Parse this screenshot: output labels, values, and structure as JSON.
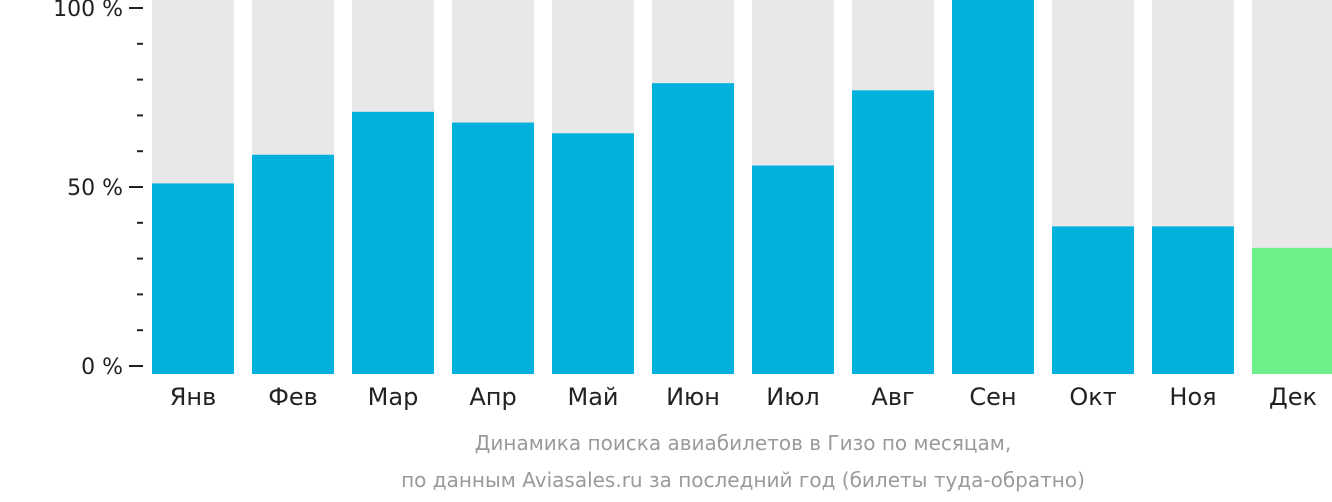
{
  "chart_data": {
    "type": "bar",
    "categories": [
      "Янв",
      "Фев",
      "Мар",
      "Апр",
      "Май",
      "Июн",
      "Июл",
      "Авг",
      "Сен",
      "Окт",
      "Ноя",
      "Дек"
    ],
    "values": [
      51,
      59,
      71,
      68,
      65,
      79,
      56,
      77,
      100,
      39,
      39,
      33
    ],
    "highlighted_category": "Дек",
    "ylim": [
      0,
      100
    ],
    "y_tick_labels": [
      "0 %",
      "50 %",
      "100 %"
    ],
    "y_tick_values": [
      0,
      50,
      100
    ],
    "y_minor_step": 10,
    "title": "Динамика поиска авиабилетов в Гизо по месяцам,",
    "subtitle": "по данным Aviasales.ru за последний год (билеты туда-обратно)",
    "colors": {
      "bar": "#00b1dd",
      "bar_highlight": "#6cf08a",
      "bar_background": "#e8e8e8",
      "axis": "#222222",
      "caption": "#9a9a9a"
    }
  }
}
